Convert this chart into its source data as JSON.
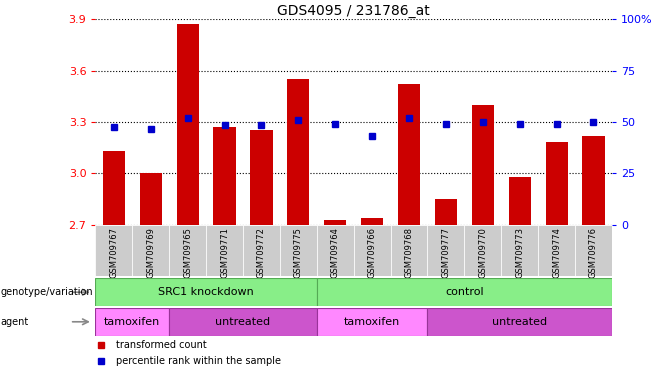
{
  "title": "GDS4095 / 231786_at",
  "samples": [
    "GSM709767",
    "GSM709769",
    "GSM709765",
    "GSM709771",
    "GSM709772",
    "GSM709775",
    "GSM709764",
    "GSM709766",
    "GSM709768",
    "GSM709777",
    "GSM709770",
    "GSM709773",
    "GSM709774",
    "GSM709776"
  ],
  "red_values": [
    3.13,
    3.0,
    3.87,
    3.27,
    3.25,
    3.55,
    2.73,
    2.74,
    3.52,
    2.85,
    3.4,
    2.98,
    3.18,
    3.22
  ],
  "blue_values": [
    3.27,
    3.26,
    3.32,
    3.28,
    3.28,
    3.31,
    3.29,
    3.22,
    3.32,
    3.29,
    3.3,
    3.29,
    3.29,
    3.3
  ],
  "ylim_left": [
    2.7,
    3.9
  ],
  "ylim_right": [
    0,
    100
  ],
  "yticks_left": [
    2.7,
    3.0,
    3.3,
    3.6,
    3.9
  ],
  "yticks_right": [
    0,
    25,
    50,
    75,
    100
  ],
  "ytick_labels_right": [
    "0",
    "25",
    "50",
    "75",
    "100%"
  ],
  "bar_color": "#cc0000",
  "dot_color": "#0000cc",
  "geno_groups": [
    {
      "label": "SRC1 knockdown",
      "start": 0,
      "end": 6
    },
    {
      "label": "control",
      "start": 6,
      "end": 14
    }
  ],
  "agent_groups": [
    {
      "label": "tamoxifen",
      "start": 0,
      "end": 2,
      "color": "#ff88ff"
    },
    {
      "label": "untreated",
      "start": 2,
      "end": 6,
      "color": "#cc55cc"
    },
    {
      "label": "tamoxifen",
      "start": 6,
      "end": 9,
      "color": "#ff88ff"
    },
    {
      "label": "untreated",
      "start": 9,
      "end": 14,
      "color": "#cc55cc"
    }
  ],
  "geno_color": "#88ee88",
  "genotype_label": "genotype/variation",
  "agent_label": "agent",
  "legend_items": [
    {
      "label": "transformed count",
      "color": "#cc0000"
    },
    {
      "label": "percentile rank within the sample",
      "color": "#0000cc"
    }
  ]
}
